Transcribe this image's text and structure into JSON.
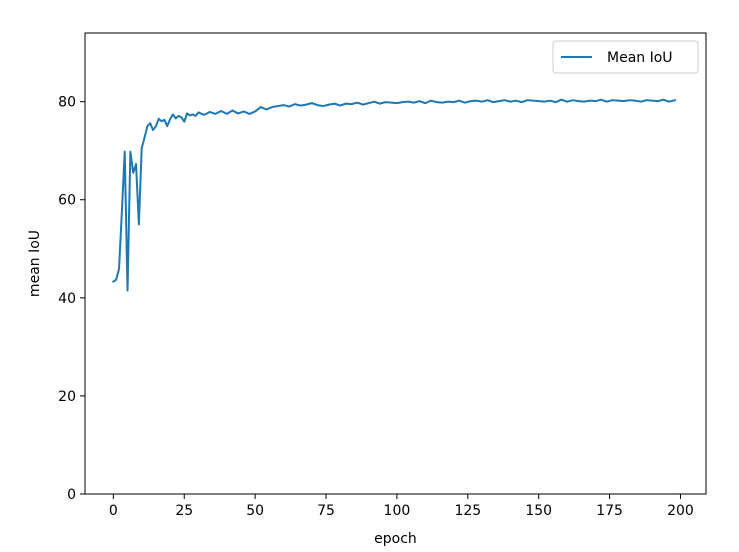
{
  "chart_data": {
    "type": "line",
    "title": "",
    "xlabel": "epoch",
    "ylabel": "mean IoU",
    "xlim": [
      -10,
      209
    ],
    "ylim": [
      0,
      94
    ],
    "xticks": [
      0,
      25,
      50,
      75,
      100,
      125,
      150,
      175,
      200
    ],
    "yticks": [
      0,
      20,
      40,
      60,
      80
    ],
    "grid": false,
    "legend_position": "upper right",
    "series": [
      {
        "name": "Mean IoU",
        "color": "#1f77b4",
        "x": [
          0,
          1,
          2,
          3,
          4,
          5,
          6,
          7,
          8,
          9,
          10,
          11,
          12,
          13,
          14,
          15,
          16,
          17,
          18,
          19,
          20,
          21,
          22,
          23,
          24,
          25,
          26,
          27,
          28,
          29,
          30,
          32,
          34,
          36,
          38,
          40,
          42,
          44,
          46,
          48,
          50,
          52,
          54,
          56,
          58,
          60,
          62,
          64,
          66,
          68,
          70,
          72,
          74,
          76,
          78,
          80,
          82,
          84,
          86,
          88,
          90,
          92,
          94,
          96,
          98,
          100,
          102,
          104,
          106,
          108,
          110,
          112,
          114,
          116,
          118,
          120,
          122,
          124,
          126,
          128,
          130,
          132,
          134,
          136,
          138,
          140,
          142,
          144,
          146,
          148,
          150,
          152,
          154,
          156,
          158,
          160,
          162,
          164,
          166,
          168,
          170,
          172,
          174,
          176,
          178,
          180,
          182,
          184,
          186,
          188,
          190,
          192,
          194,
          196,
          198
        ],
        "values": [
          43.3,
          43.7,
          45.9,
          57.5,
          69.8,
          41.5,
          69.8,
          65.5,
          67.3,
          55.0,
          70.5,
          72.7,
          75.0,
          75.6,
          74.2,
          75.0,
          76.5,
          76.0,
          76.3,
          75.0,
          76.4,
          77.4,
          76.6,
          77.1,
          76.8,
          75.9,
          77.6,
          77.2,
          77.4,
          77.1,
          77.8,
          77.3,
          77.9,
          77.5,
          78.1,
          77.5,
          78.2,
          77.6,
          78.0,
          77.5,
          78.0,
          78.9,
          78.4,
          78.9,
          79.1,
          79.3,
          79.0,
          79.5,
          79.2,
          79.4,
          79.7,
          79.3,
          79.1,
          79.4,
          79.6,
          79.2,
          79.6,
          79.5,
          79.8,
          79.4,
          79.7,
          80.0,
          79.6,
          79.9,
          79.8,
          79.7,
          79.9,
          80.0,
          79.8,
          80.1,
          79.7,
          80.2,
          79.9,
          79.8,
          80.0,
          79.9,
          80.2,
          79.8,
          80.1,
          80.2,
          80.0,
          80.3,
          79.9,
          80.1,
          80.3,
          80.0,
          80.2,
          79.9,
          80.3,
          80.2,
          80.1,
          80.0,
          80.2,
          79.9,
          80.4,
          80.0,
          80.3,
          80.1,
          80.0,
          80.2,
          80.1,
          80.4,
          80.0,
          80.3,
          80.2,
          80.1,
          80.3,
          80.2,
          80.0,
          80.3,
          80.2,
          80.1,
          80.4,
          80.0,
          80.3
        ]
      }
    ]
  }
}
